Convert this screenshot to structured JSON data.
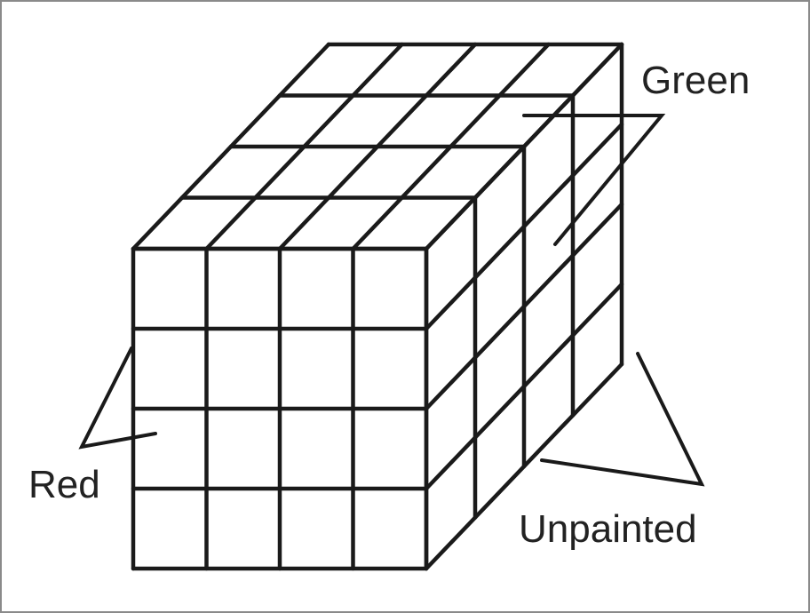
{
  "labels": {
    "green": "Green",
    "red": "Red",
    "unpainted": "Unpainted"
  },
  "cube": {
    "grid": 4
  },
  "colors": {
    "ink": "#1a1a1a",
    "background": "#ffffff",
    "frame": "#8a8a8a"
  }
}
